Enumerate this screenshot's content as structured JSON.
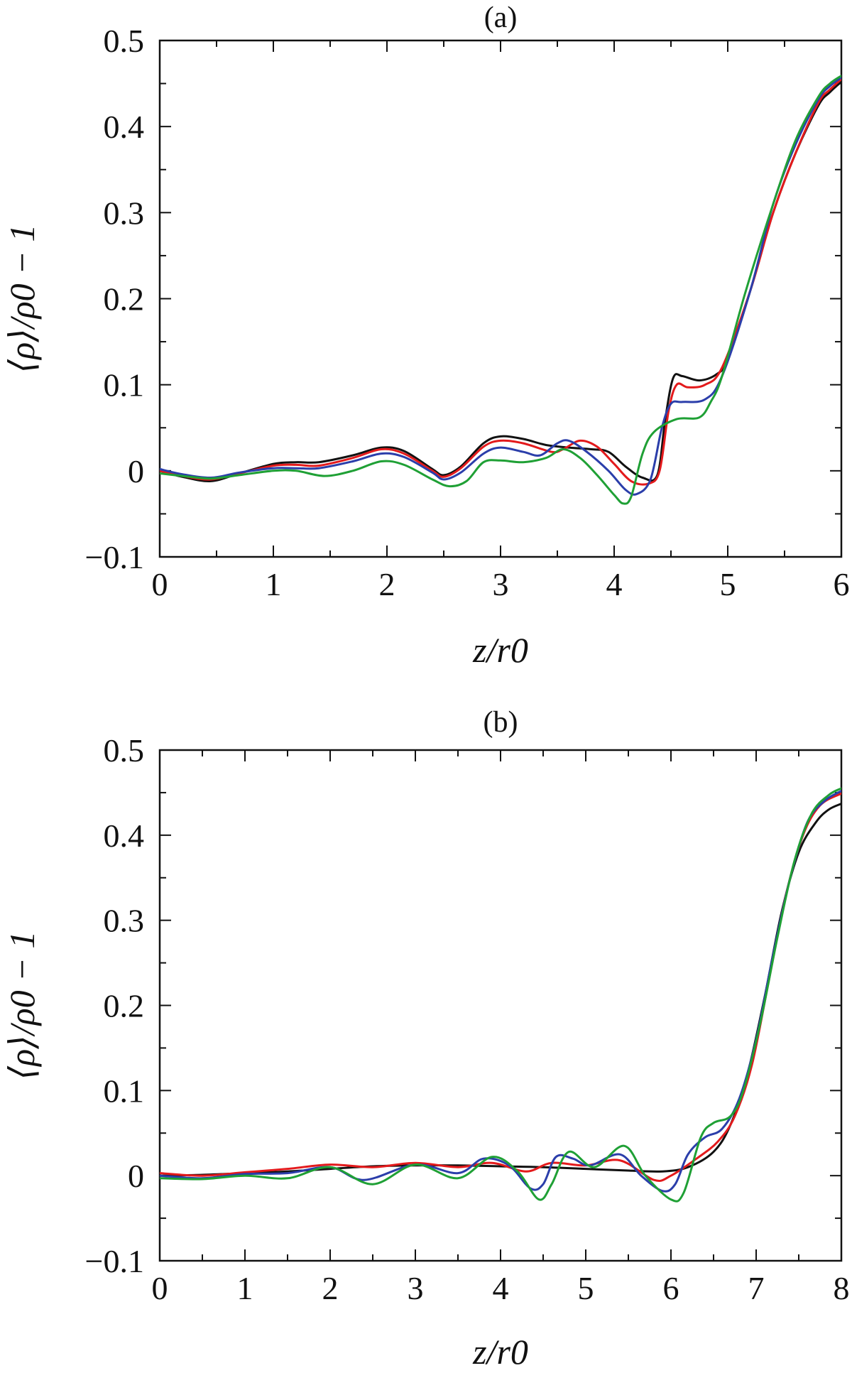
{
  "chart_data": [
    {
      "type": "line",
      "title": "(a)",
      "xlabel": "z/r0",
      "ylabel": "⟨ρ⟩/ρ0 − 1",
      "xlim": [
        0,
        6
      ],
      "ylim": [
        -0.1,
        0.5
      ],
      "xticks": [
        "0",
        "1",
        "2",
        "3",
        "4",
        "5",
        "6"
      ],
      "yticks": [
        "−0.1",
        "0",
        "0.1",
        "0.2",
        "0.3",
        "0.4",
        "0.5"
      ],
      "grid": false,
      "legend": "none",
      "series": [
        {
          "color": "#111111",
          "points": [
            [
              0,
              0
            ],
            [
              0.2,
              -0.007
            ],
            [
              0.45,
              -0.012
            ],
            [
              0.7,
              -0.003
            ],
            [
              1.0,
              0.008
            ],
            [
              1.2,
              0.01
            ],
            [
              1.4,
              0.01
            ],
            [
              1.7,
              0.018
            ],
            [
              1.95,
              0.027
            ],
            [
              2.15,
              0.023
            ],
            [
              2.4,
              0.002
            ],
            [
              2.5,
              -0.005
            ],
            [
              2.65,
              0.005
            ],
            [
              2.85,
              0.032
            ],
            [
              3.0,
              0.04
            ],
            [
              3.2,
              0.037
            ],
            [
              3.4,
              0.03
            ],
            [
              3.6,
              0.027
            ],
            [
              3.8,
              0.025
            ],
            [
              3.95,
              0.022
            ],
            [
              4.1,
              0.005
            ],
            [
              4.25,
              -0.008
            ],
            [
              4.38,
              -0.005
            ],
            [
              4.45,
              0.06
            ],
            [
              4.52,
              0.108
            ],
            [
              4.6,
              0.11
            ],
            [
              4.75,
              0.105
            ],
            [
              4.9,
              0.112
            ],
            [
              5.0,
              0.13
            ],
            [
              5.2,
              0.21
            ],
            [
              5.4,
              0.3
            ],
            [
              5.6,
              0.37
            ],
            [
              5.8,
              0.425
            ],
            [
              5.9,
              0.44
            ],
            [
              6.0,
              0.452
            ]
          ]
        },
        {
          "color": "#e31a1c",
          "points": [
            [
              0,
              0
            ],
            [
              0.2,
              -0.006
            ],
            [
              0.45,
              -0.01
            ],
            [
              0.7,
              -0.003
            ],
            [
              1.0,
              0.006
            ],
            [
              1.2,
              0.007
            ],
            [
              1.4,
              0.006
            ],
            [
              1.7,
              0.015
            ],
            [
              1.95,
              0.025
            ],
            [
              2.15,
              0.02
            ],
            [
              2.4,
              0.0
            ],
            [
              2.5,
              -0.007
            ],
            [
              2.65,
              0.003
            ],
            [
              2.85,
              0.028
            ],
            [
              3.0,
              0.035
            ],
            [
              3.2,
              0.032
            ],
            [
              3.45,
              0.022
            ],
            [
              3.55,
              0.025
            ],
            [
              3.7,
              0.035
            ],
            [
              3.85,
              0.028
            ],
            [
              4.0,
              0.008
            ],
            [
              4.15,
              -0.012
            ],
            [
              4.3,
              -0.015
            ],
            [
              4.4,
              0.0
            ],
            [
              4.48,
              0.07
            ],
            [
              4.55,
              0.1
            ],
            [
              4.65,
              0.097
            ],
            [
              4.8,
              0.1
            ],
            [
              4.95,
              0.12
            ],
            [
              5.2,
              0.21
            ],
            [
              5.4,
              0.3
            ],
            [
              5.6,
              0.37
            ],
            [
              5.8,
              0.428
            ],
            [
              5.9,
              0.443
            ],
            [
              6.0,
              0.455
            ]
          ]
        },
        {
          "color": "#2b3eaa",
          "points": [
            [
              0,
              0.002
            ],
            [
              0.2,
              -0.004
            ],
            [
              0.45,
              -0.008
            ],
            [
              0.7,
              -0.002
            ],
            [
              1.0,
              0.003
            ],
            [
              1.2,
              0.003
            ],
            [
              1.4,
              0.003
            ],
            [
              1.7,
              0.011
            ],
            [
              1.95,
              0.02
            ],
            [
              2.15,
              0.016
            ],
            [
              2.4,
              -0.002
            ],
            [
              2.5,
              -0.01
            ],
            [
              2.65,
              -0.002
            ],
            [
              2.85,
              0.02
            ],
            [
              3.0,
              0.027
            ],
            [
              3.2,
              0.022
            ],
            [
              3.35,
              0.018
            ],
            [
              3.5,
              0.032
            ],
            [
              3.6,
              0.035
            ],
            [
              3.75,
              0.023
            ],
            [
              3.95,
              0.0
            ],
            [
              4.1,
              -0.022
            ],
            [
              4.2,
              -0.027
            ],
            [
              4.32,
              -0.01
            ],
            [
              4.42,
              0.05
            ],
            [
              4.5,
              0.078
            ],
            [
              4.6,
              0.08
            ],
            [
              4.8,
              0.083
            ],
            [
              4.95,
              0.11
            ],
            [
              5.2,
              0.21
            ],
            [
              5.4,
              0.31
            ],
            [
              5.6,
              0.38
            ],
            [
              5.8,
              0.432
            ],
            [
              5.9,
              0.447
            ],
            [
              6.0,
              0.457
            ]
          ]
        },
        {
          "color": "#1fa035",
          "points": [
            [
              0,
              -0.003
            ],
            [
              0.2,
              -0.006
            ],
            [
              0.45,
              -0.009
            ],
            [
              0.7,
              -0.005
            ],
            [
              1.0,
              0.0
            ],
            [
              1.2,
              0.0
            ],
            [
              1.45,
              -0.006
            ],
            [
              1.7,
              0.0
            ],
            [
              1.95,
              0.011
            ],
            [
              2.15,
              0.007
            ],
            [
              2.4,
              -0.01
            ],
            [
              2.55,
              -0.018
            ],
            [
              2.7,
              -0.012
            ],
            [
              2.85,
              0.01
            ],
            [
              3.0,
              0.012
            ],
            [
              3.2,
              0.01
            ],
            [
              3.4,
              0.015
            ],
            [
              3.55,
              0.025
            ],
            [
              3.7,
              0.015
            ],
            [
              3.85,
              -0.005
            ],
            [
              4.0,
              -0.028
            ],
            [
              4.08,
              -0.038
            ],
            [
              4.15,
              -0.03
            ],
            [
              4.25,
              0.02
            ],
            [
              4.35,
              0.045
            ],
            [
              4.55,
              0.06
            ],
            [
              4.75,
              0.062
            ],
            [
              4.85,
              0.08
            ],
            [
              4.95,
              0.11
            ],
            [
              5.15,
              0.205
            ],
            [
              5.4,
              0.31
            ],
            [
              5.6,
              0.385
            ],
            [
              5.8,
              0.435
            ],
            [
              5.9,
              0.45
            ],
            [
              6.0,
              0.459
            ]
          ]
        }
      ]
    },
    {
      "type": "line",
      "title": "(b)",
      "xlabel": "z/r0",
      "ylabel": "⟨ρ⟩/ρ0 − 1",
      "xlim": [
        0,
        8
      ],
      "ylim": [
        -0.1,
        0.5
      ],
      "xticks": [
        "0",
        "1",
        "2",
        "3",
        "4",
        "5",
        "6",
        "7",
        "8"
      ],
      "yticks": [
        "−0.1",
        "0",
        "0.1",
        "0.2",
        "0.3",
        "0.4",
        "0.5"
      ],
      "grid": false,
      "legend": "none",
      "series": [
        {
          "color": "#111111",
          "points": [
            [
              0,
              0.0
            ],
            [
              0.5,
              0.001
            ],
            [
              1.0,
              0.003
            ],
            [
              1.5,
              0.005
            ],
            [
              2.0,
              0.008
            ],
            [
              2.5,
              0.011
            ],
            [
              3.0,
              0.012
            ],
            [
              3.5,
              0.012
            ],
            [
              4.0,
              0.011
            ],
            [
              4.5,
              0.01
            ],
            [
              5.0,
              0.008
            ],
            [
              5.5,
              0.006
            ],
            [
              5.9,
              0.005
            ],
            [
              6.2,
              0.01
            ],
            [
              6.5,
              0.028
            ],
            [
              6.7,
              0.06
            ],
            [
              6.9,
              0.12
            ],
            [
              7.1,
              0.21
            ],
            [
              7.3,
              0.31
            ],
            [
              7.5,
              0.38
            ],
            [
              7.7,
              0.415
            ],
            [
              7.85,
              0.43
            ],
            [
              8.0,
              0.437
            ]
          ]
        },
        {
          "color": "#e31a1c",
          "points": [
            [
              0,
              0.003
            ],
            [
              0.5,
              0.0
            ],
            [
              1.0,
              0.004
            ],
            [
              1.5,
              0.008
            ],
            [
              2.0,
              0.013
            ],
            [
              2.5,
              0.01
            ],
            [
              3.0,
              0.015
            ],
            [
              3.5,
              0.01
            ],
            [
              3.9,
              0.015
            ],
            [
              4.3,
              0.005
            ],
            [
              4.6,
              0.015
            ],
            [
              5.0,
              0.012
            ],
            [
              5.4,
              0.018
            ],
            [
              5.8,
              -0.005
            ],
            [
              6.0,
              0.0
            ],
            [
              6.3,
              0.02
            ],
            [
              6.55,
              0.04
            ],
            [
              6.75,
              0.07
            ],
            [
              6.95,
              0.13
            ],
            [
              7.15,
              0.23
            ],
            [
              7.35,
              0.33
            ],
            [
              7.55,
              0.4
            ],
            [
              7.75,
              0.435
            ],
            [
              8.0,
              0.449
            ]
          ]
        },
        {
          "color": "#2b3eaa",
          "points": [
            [
              0,
              0.0
            ],
            [
              0.5,
              -0.003
            ],
            [
              1.0,
              0.002
            ],
            [
              1.5,
              0.003
            ],
            [
              2.0,
              0.01
            ],
            [
              2.4,
              -0.005
            ],
            [
              3.0,
              0.013
            ],
            [
              3.5,
              0.003
            ],
            [
              3.8,
              0.02
            ],
            [
              4.1,
              0.012
            ],
            [
              4.35,
              -0.015
            ],
            [
              4.5,
              -0.01
            ],
            [
              4.65,
              0.022
            ],
            [
              4.85,
              0.02
            ],
            [
              5.05,
              0.012
            ],
            [
              5.4,
              0.025
            ],
            [
              5.65,
              0.0
            ],
            [
              5.9,
              -0.018
            ],
            [
              6.05,
              -0.01
            ],
            [
              6.2,
              0.025
            ],
            [
              6.4,
              0.045
            ],
            [
              6.6,
              0.055
            ],
            [
              6.8,
              0.09
            ],
            [
              7.0,
              0.16
            ],
            [
              7.2,
              0.26
            ],
            [
              7.4,
              0.35
            ],
            [
              7.6,
              0.415
            ],
            [
              7.8,
              0.44
            ],
            [
              8.0,
              0.452
            ]
          ]
        },
        {
          "color": "#1fa035",
          "points": [
            [
              0,
              -0.003
            ],
            [
              0.5,
              -0.004
            ],
            [
              1.0,
              0.0
            ],
            [
              1.5,
              -0.003
            ],
            [
              2.0,
              0.01
            ],
            [
              2.5,
              -0.01
            ],
            [
              3.0,
              0.013
            ],
            [
              3.5,
              -0.003
            ],
            [
              3.9,
              0.022
            ],
            [
              4.2,
              0.005
            ],
            [
              4.45,
              -0.028
            ],
            [
              4.6,
              -0.01
            ],
            [
              4.8,
              0.028
            ],
            [
              5.1,
              0.01
            ],
            [
              5.45,
              0.035
            ],
            [
              5.7,
              0.0
            ],
            [
              6.0,
              -0.028
            ],
            [
              6.15,
              -0.02
            ],
            [
              6.35,
              0.045
            ],
            [
              6.5,
              0.062
            ],
            [
              6.7,
              0.07
            ],
            [
              6.85,
              0.1
            ],
            [
              7.05,
              0.18
            ],
            [
              7.25,
              0.28
            ],
            [
              7.45,
              0.37
            ],
            [
              7.65,
              0.425
            ],
            [
              7.85,
              0.447
            ],
            [
              8.0,
              0.455
            ]
          ]
        }
      ]
    }
  ]
}
